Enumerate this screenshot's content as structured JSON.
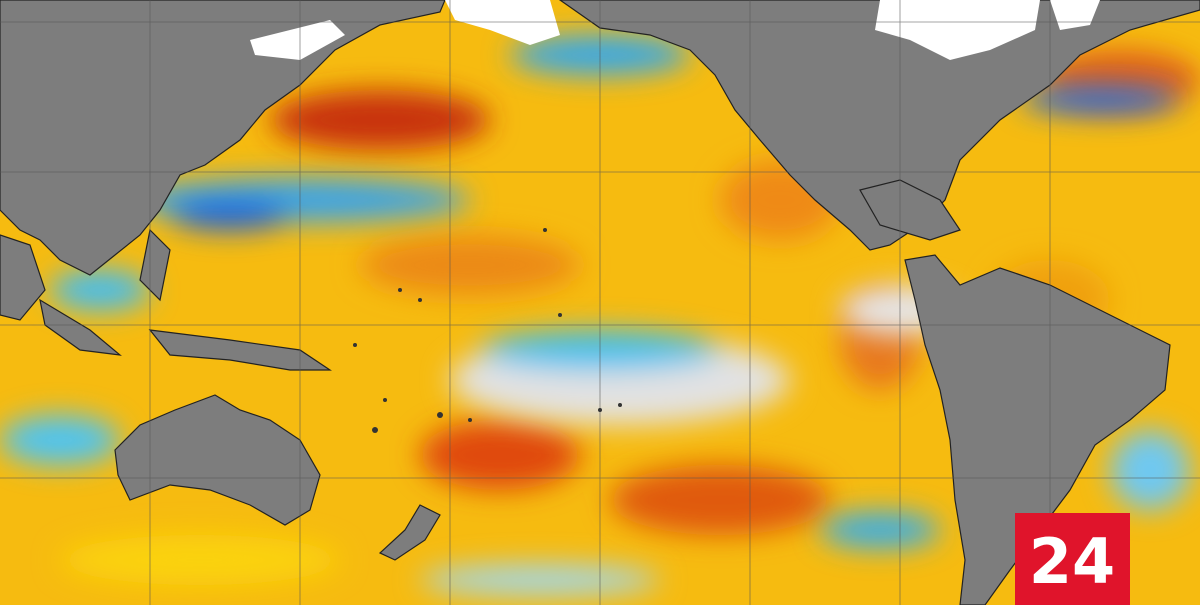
{
  "logo": {
    "text": "24"
  }
}
